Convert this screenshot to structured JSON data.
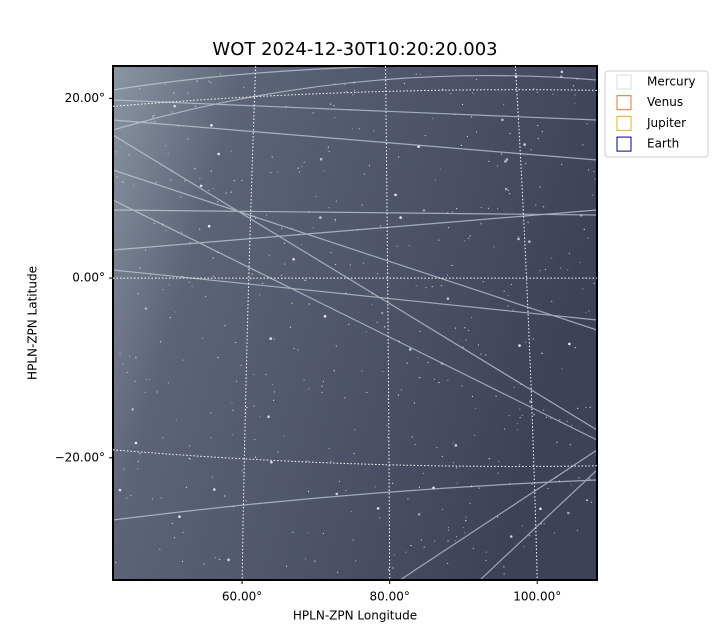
{
  "chart_data": {
    "type": "image",
    "title": "WOT 2024-12-30T10:20:20.003",
    "xlabel": "HPLN-ZPN Longitude",
    "ylabel": "HPLN-ZPN Latitude",
    "xlim": [
      42.5,
      108.1
    ],
    "ylim": [
      -33.6,
      23.6
    ],
    "xticks": [
      {
        "value": 60,
        "label": "60.00°"
      },
      {
        "value": 80,
        "label": "80.00°"
      },
      {
        "value": 100,
        "label": "100.00°"
      }
    ],
    "yticks": [
      {
        "value": -20,
        "label": "−20.00°"
      },
      {
        "value": 0,
        "label": "0.00°"
      },
      {
        "value": 20,
        "label": "20.00°"
      }
    ],
    "grid": true,
    "legend": "upper right outside",
    "series": [
      {
        "name": "Mercury",
        "color": "#dddddd"
      },
      {
        "name": "Venus",
        "color": "#d8783a"
      },
      {
        "name": "Jupiter",
        "color": "#e0b020"
      },
      {
        "name": "Earth",
        "color": "#000080"
      }
    ]
  }
}
